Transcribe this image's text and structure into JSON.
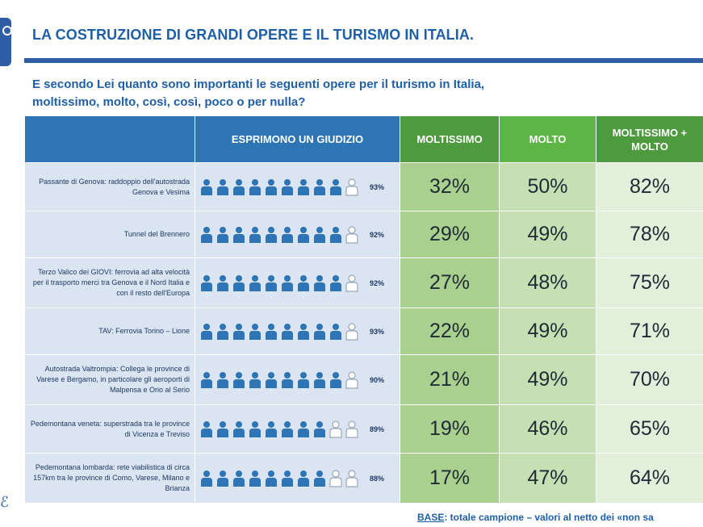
{
  "title": "LA COSTRUZIONE DI GRANDI OPERE E IL TURISMO IN ITALIA.",
  "question": "E secondo Lei quanto sono importanti le seguenti opere per il turismo in Italia, moltissimo, molto, così, così, poco o per nulla?",
  "headers": {
    "judgment": "ESPRIMONO UN GIUDIZIO",
    "moltissimo": "MOLTISSIMO",
    "molto": "MOLTO",
    "combined": "MOLTISSIMO + MOLTO"
  },
  "footer": {
    "base_label": "BASE",
    "base_text": ": totale campione – valori al netto dei «non sa"
  },
  "colors": {
    "header_blue": "#2e75b6",
    "header_green": "#4e9a3e",
    "icon_blue": "#2e75b6",
    "icon_outline": "#9aa7b5"
  },
  "icons": {
    "filled": "person-icon",
    "empty": "person-outline-icon"
  },
  "chart_data": {
    "type": "table",
    "columns": [
      "ESPRIMONO UN GIUDIZIO",
      "MOLTISSIMO",
      "MOLTO",
      "MOLTISSIMO + MOLTO"
    ],
    "rows": [
      {
        "label": "Passante di Genova: raddoppio dell'autostrada Genova e Vesima",
        "judgment_label": "93%",
        "judgment": 93,
        "moltissimo": "32%",
        "molto": "50%",
        "combined": "82%"
      },
      {
        "label": "Tunnel del Brennero",
        "judgment_label": "92%",
        "judgment": 92,
        "moltissimo": "29%",
        "molto": "49%",
        "combined": "78%"
      },
      {
        "label": "Terzo Valico dei GIOVI: ferrovia ad alta velocità per il trasporto merci tra Genova e il Nord Italia e con il resto dell'Europa",
        "judgment_label": "92%",
        "judgment": 92,
        "moltissimo": "27%",
        "molto": "48%",
        "combined": "75%"
      },
      {
        "label": "TAV: Ferrovia Torino – Lione",
        "judgment_label": "93%",
        "judgment": 93,
        "moltissimo": "22%",
        "molto": "49%",
        "combined": "71%"
      },
      {
        "label": "Autostrada Valtrompia: Collega le province di Varese e Bergamo, in particolare gli aeroporti di Malpensa e Orio al Serio",
        "judgment_label": "90%",
        "judgment": 90,
        "moltissimo": "21%",
        "molto": "49%",
        "combined": "70%"
      },
      {
        "label": "Pedemontana veneta: superstrada tra le province di Vicenza e Treviso",
        "judgment_label": "89%",
        "judgment": 89,
        "moltissimo": "19%",
        "molto": "46%",
        "combined": "65%"
      },
      {
        "label": "Pedemontana lombarda: rete viabilistica di circa 157km tra le province di Como, Varese, Milano e Brianza",
        "judgment_label": "88%",
        "judgment": 88,
        "moltissimo": "17%",
        "molto": "47%",
        "combined": "64%"
      }
    ]
  }
}
